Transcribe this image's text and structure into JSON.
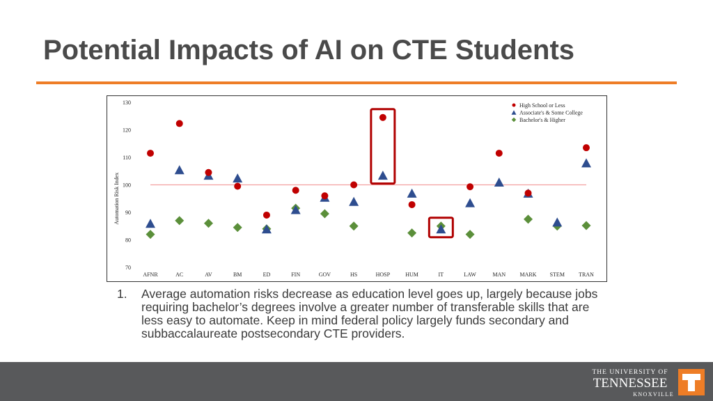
{
  "slide": {
    "title": "Potential Impacts of AI on CTE Students",
    "note_number": "1.",
    "note_text": "Average automation risks decrease as education level goes up, largely because jobs requiring bachelor’s degrees involve a greater number of transferable skills that are less easy to automate. Keep in mind federal policy largely funds secondary and subbaccalaureate postsecondary CTE providers."
  },
  "footer": {
    "logo_line1": "THE UNIVERSITY OF",
    "logo_line2": "TENNESSEE",
    "logo_line3": "KNOXVILLE"
  },
  "colors": {
    "accent": "#ee7d26",
    "footer": "#58595b",
    "high_school": "#c00000",
    "associates": "#2e4d8f",
    "bachelors": "#5b8f3a",
    "reference_line": "#f2a0a0",
    "highlight_box": "#b00000"
  },
  "chart_data": {
    "type": "scatter",
    "title": "",
    "xlabel": "",
    "ylabel": "Automation Risk Index",
    "ylim": [
      70,
      130
    ],
    "yticks": [
      70,
      80,
      90,
      100,
      110,
      120,
      130
    ],
    "reference_line": 100,
    "categories": [
      "AFNR",
      "AC",
      "AV",
      "BM",
      "ED",
      "FIN",
      "GOV",
      "HS",
      "HOSP",
      "HUM",
      "IT",
      "LAW",
      "MAN",
      "MARK",
      "STEM",
      "TRAN"
    ],
    "series": [
      {
        "name": "High School or Less",
        "marker": "circle",
        "color": "#c00000",
        "values": [
          111.5,
          122.3,
          104.5,
          99.5,
          89,
          98,
          96,
          100,
          124.5,
          92.8,
          null,
          99.3,
          111.5,
          97,
          null,
          113.5
        ]
      },
      {
        "name": "Associate's & Some College",
        "marker": "triangle",
        "color": "#2e4d8f",
        "values": [
          86,
          105.5,
          103.5,
          102.5,
          84,
          91,
          95.5,
          94,
          103.5,
          97,
          84,
          93.5,
          101,
          97,
          86.5,
          108
        ]
      },
      {
        "name": "Bachelor's & Higher",
        "marker": "diamond",
        "color": "#5b8f3a",
        "values": [
          82,
          87,
          86,
          84.5,
          84,
          91.5,
          89.5,
          85,
          null,
          82.5,
          85,
          82,
          null,
          87.5,
          85,
          85.2
        ]
      }
    ],
    "highlighted_categories": [
      "HOSP",
      "IT"
    ],
    "legend_position": "top-right"
  }
}
